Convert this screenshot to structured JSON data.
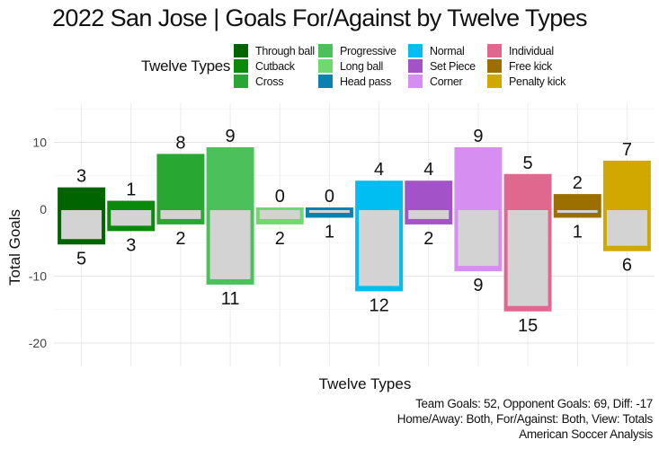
{
  "chart_data": {
    "type": "bar",
    "title": "2022 San Jose | Goals For/Against by Twelve Types",
    "xlabel": "Twelve Types",
    "ylabel": "Total Goals",
    "ylim": [
      -23.5,
      15.5
    ],
    "yticks": [
      10,
      0,
      -10,
      -20
    ],
    "ytick_labels": [
      "10",
      "0",
      "-10",
      "-20"
    ],
    "grid": true,
    "legend_title": "Twelve Types",
    "legend_position": "top",
    "categories": [
      "Through ball",
      "Cutback",
      "Cross",
      "Progressive",
      "Long ball",
      "Head pass",
      "Normal",
      "Set Piece",
      "Corner",
      "Individual",
      "Free kick",
      "Penalty kick"
    ],
    "colors": [
      "#006400",
      "#0a8a0a",
      "#28a832",
      "#4cc05a",
      "#70d870",
      "#0a82b0",
      "#00bdf2",
      "#a352c8",
      "#d68ef0",
      "#e0678e",
      "#9c7000",
      "#d0a800"
    ],
    "series": [
      {
        "name": "Goals For",
        "values": [
          3,
          1,
          8,
          9,
          0,
          0,
          4,
          4,
          9,
          5,
          2,
          7
        ]
      },
      {
        "name": "Goals Against",
        "values": [
          5,
          3,
          2,
          11,
          2,
          1,
          12,
          2,
          9,
          15,
          1,
          6
        ]
      }
    ],
    "for_labels": [
      "3",
      "1",
      "8",
      "9",
      "0",
      "0",
      "4",
      "4",
      "9",
      "5",
      "2",
      "7"
    ],
    "against_labels": [
      "5",
      "3",
      "2",
      "11",
      "2",
      "1",
      "12",
      "2",
      "9",
      "15",
      "1",
      "6"
    ],
    "caption_lines": [
      "Team Goals: 52, Opponent Goals: 69, Diff: -17",
      "Home/Away: Both, For/Against: Both, View: Totals",
      "American Soccer Analysis"
    ]
  }
}
